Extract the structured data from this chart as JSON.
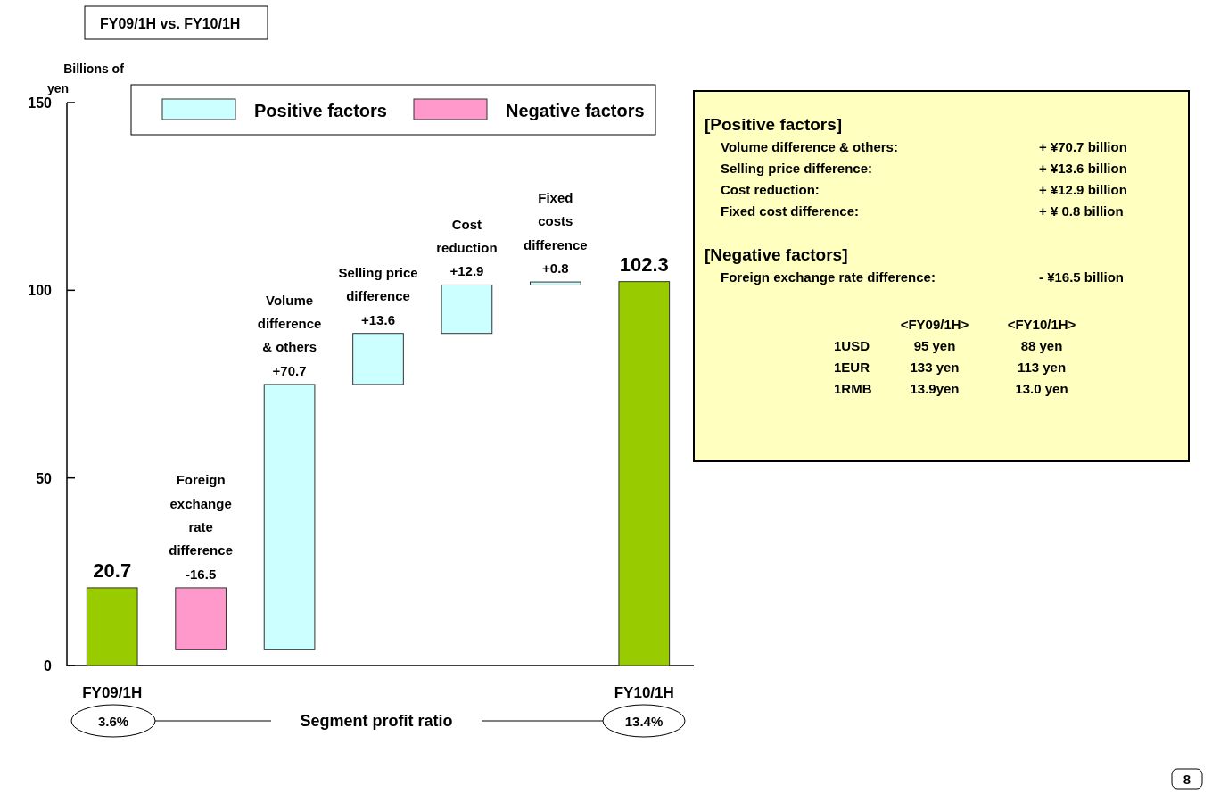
{
  "chart_data": [
    {
      "type": "bar",
      "title": "FY09/1H  vs.  FY10/1H",
      "ylabel": "Billions of\nyen",
      "categories": [
        "FY09/1H",
        null,
        null,
        null,
        null,
        null,
        "FY10/1H"
      ],
      "series": [
        {
          "color": "#99cc00",
          "values": [
            20.7,
            null,
            null,
            null,
            null,
            null,
            102.3
          ],
          "base": [
            0,
            null,
            null,
            null,
            null,
            null,
            0
          ]
        },
        {
          "name": "Positive factors",
          "color": "#ccffff",
          "values": [
            null,
            null,
            70.7,
            13.6,
            12.9,
            0.8,
            null
          ],
          "base": [
            null,
            null,
            4.2,
            74.9,
            88.5,
            101.4,
            null
          ]
        },
        {
          "name": "Negative factors",
          "color": "#ff99cc",
          "values": [
            null,
            -16.5,
            null,
            null,
            null,
            null,
            null
          ],
          "base": [
            null,
            20.7,
            null,
            null,
            null,
            null,
            null
          ]
        }
      ],
      "value_labels": [
        "20.7",
        "Foreign\nexchange\nrate\ndifference\n-16.5",
        "Volume\ndifference\n& others\n+70.7",
        "Selling price\ndifference\n+13.6",
        "Cost\nreduction\n+12.9",
        "Fixed\ncosts\ndifference\n+0.8",
        "102.3"
      ],
      "ylim": [
        0,
        150
      ],
      "yticks": [
        0,
        50,
        100,
        150
      ],
      "legend": "top",
      "annotations": [
        "3.6%",
        "Segment profit ratio",
        "13.4%",
        "8"
      ]
    },
    {
      "type": "other",
      "annotations": [
        "[Positive factors]",
        "Volume difference & others:\t+ ¥70.7 billion",
        "Selling price difference:\t+ ¥13.6 billion",
        "Cost reduction:\t+ ¥12.9 billion",
        "Fixed cost difference:\t+ ¥ 0.8 billion",
        "[Negative factors]",
        "Foreign exchange rate difference:\t- ¥16.5 billion",
        "\t<FY09/1H>\t<FY10/1H>",
        "1USD\t95 yen\t88 yen",
        "1EUR\t133 yen\t113 yen",
        "1RMB\t13.9yen\t13.0 yen"
      ]
    }
  ]
}
